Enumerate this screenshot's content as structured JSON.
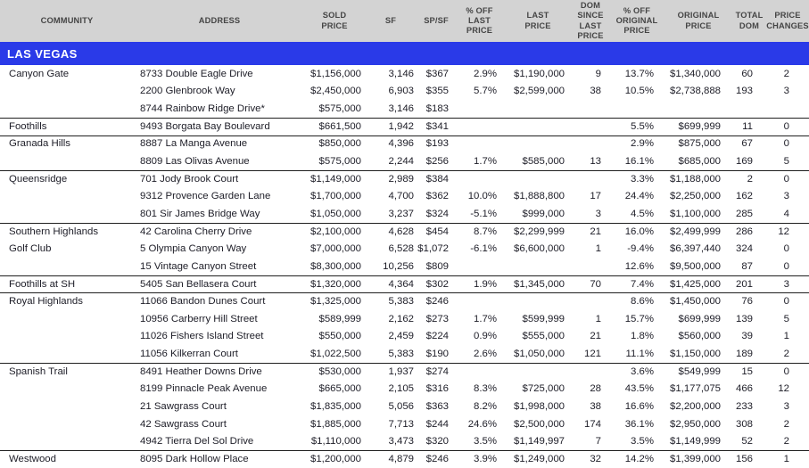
{
  "colors": {
    "banner_bg": "#2a3ae8",
    "banner_text": "#ffffff",
    "header_bg": "#d3d3d3",
    "header_text": "#454545",
    "body_text": "#1d1d27",
    "section_border": "#1f1f1f"
  },
  "table": {
    "region": "LAS VEGAS",
    "columns": [
      {
        "id": "community",
        "label": "COMMUNITY"
      },
      {
        "id": "address",
        "label": "ADDRESS"
      },
      {
        "id": "sold_price",
        "label": "SOLD\nPRICE"
      },
      {
        "id": "sf",
        "label": "SF"
      },
      {
        "id": "sp_sf",
        "label": "SP/SF"
      },
      {
        "id": "pct_off_last",
        "label": "% OFF\nLAST\nPRICE"
      },
      {
        "id": "last_price",
        "label": "LAST\nPRICE"
      },
      {
        "id": "dom_since_last",
        "label": "DOM\nSINCE\nLAST\nPRICE"
      },
      {
        "id": "pct_off_original",
        "label": "% OFF\nORIGINAL\nPRICE"
      },
      {
        "id": "original_price",
        "label": "ORIGINAL\nPRICE"
      },
      {
        "id": "total_dom",
        "label": "TOTAL\nDOM"
      },
      {
        "id": "price_changes",
        "label": "PRICE\nCHANGES"
      }
    ],
    "sections": [
      {
        "community": [
          "Canyon Gate"
        ],
        "rows": [
          {
            "address": "8733 Double Eagle Drive",
            "sold_price": "$1,156,000",
            "sf": "3,146",
            "sp_sf": "$367",
            "pct_off_last": "2.9%",
            "last_price": "$1,190,000",
            "dom_since_last": "9",
            "pct_off_original": "13.7%",
            "original_price": "$1,340,000",
            "total_dom": "60",
            "price_changes": "2"
          },
          {
            "address": "2200 Glenbrook Way",
            "sold_price": "$2,450,000",
            "sf": "6,903",
            "sp_sf": "$355",
            "pct_off_last": "5.7%",
            "last_price": "$2,599,000",
            "dom_since_last": "38",
            "pct_off_original": "10.5%",
            "original_price": "$2,738,888",
            "total_dom": "193",
            "price_changes": "3"
          },
          {
            "address": "8744 Rainbow Ridge Drive*",
            "sold_price": "$575,000",
            "sf": "3,146",
            "sp_sf": "$183",
            "pct_off_last": "",
            "last_price": "",
            "dom_since_last": "",
            "pct_off_original": "",
            "original_price": "",
            "total_dom": "",
            "price_changes": ""
          }
        ]
      },
      {
        "community": [
          "Foothills"
        ],
        "rows": [
          {
            "address": "9493 Borgata Bay Boulevard",
            "sold_price": "$661,500",
            "sf": "1,942",
            "sp_sf": "$341",
            "pct_off_last": "",
            "last_price": "",
            "dom_since_last": "",
            "pct_off_original": "5.5%",
            "original_price": "$699,999",
            "total_dom": "11",
            "price_changes": "0"
          }
        ]
      },
      {
        "community": [
          "Granada Hills"
        ],
        "rows": [
          {
            "address": "8887 La Manga Avenue",
            "sold_price": "$850,000",
            "sf": "4,396",
            "sp_sf": "$193",
            "pct_off_last": "",
            "last_price": "",
            "dom_since_last": "",
            "pct_off_original": "2.9%",
            "original_price": "$875,000",
            "total_dom": "67",
            "price_changes": "0"
          },
          {
            "address": "8809 Las Olivas Avenue",
            "sold_price": "$575,000",
            "sf": "2,244",
            "sp_sf": "$256",
            "pct_off_last": "1.7%",
            "last_price": "$585,000",
            "dom_since_last": "13",
            "pct_off_original": "16.1%",
            "original_price": "$685,000",
            "total_dom": "169",
            "price_changes": "5"
          }
        ]
      },
      {
        "community": [
          "Queensridge"
        ],
        "rows": [
          {
            "address": "701 Jody Brook Court",
            "sold_price": "$1,149,000",
            "sf": "2,989",
            "sp_sf": "$384",
            "pct_off_last": "",
            "last_price": "",
            "dom_since_last": "",
            "pct_off_original": "3.3%",
            "original_price": "$1,188,000",
            "total_dom": "2",
            "price_changes": "0"
          },
          {
            "address": "9312 Provence Garden Lane",
            "sold_price": "$1,700,000",
            "sf": "4,700",
            "sp_sf": "$362",
            "pct_off_last": "10.0%",
            "last_price": "$1,888,800",
            "dom_since_last": "17",
            "pct_off_original": "24.4%",
            "original_price": "$2,250,000",
            "total_dom": "162",
            "price_changes": "3"
          },
          {
            "address": "801 Sir James Bridge Way",
            "sold_price": "$1,050,000",
            "sf": "3,237",
            "sp_sf": "$324",
            "pct_off_last": "-5.1%",
            "last_price": "$999,000",
            "dom_since_last": "3",
            "pct_off_original": "4.5%",
            "original_price": "$1,100,000",
            "total_dom": "285",
            "price_changes": "4"
          }
        ]
      },
      {
        "community": [
          "Southern Highlands",
          "Golf Club"
        ],
        "rows": [
          {
            "address": "42 Carolina Cherry Drive",
            "sold_price": "$2,100,000",
            "sf": "4,628",
            "sp_sf": "$454",
            "pct_off_last": "8.7%",
            "last_price": "$2,299,999",
            "dom_since_last": "21",
            "pct_off_original": "16.0%",
            "original_price": "$2,499,999",
            "total_dom": "286",
            "price_changes": "12"
          },
          {
            "address": "5 Olympia Canyon Way",
            "sold_price": "$7,000,000",
            "sf": "6,528",
            "sp_sf": "$1,072",
            "pct_off_last": "-6.1%",
            "last_price": "$6,600,000",
            "dom_since_last": "1",
            "pct_off_original": "-9.4%",
            "original_price": "$6,397,440",
            "total_dom": "324",
            "price_changes": "0"
          },
          {
            "address": "15 Vintage Canyon Street",
            "sold_price": "$8,300,000",
            "sf": "10,256",
            "sp_sf": "$809",
            "pct_off_last": "",
            "last_price": "",
            "dom_since_last": "",
            "pct_off_original": "12.6%",
            "original_price": "$9,500,000",
            "total_dom": "87",
            "price_changes": "0"
          }
        ]
      },
      {
        "community": [
          "Foothills at SH"
        ],
        "rows": [
          {
            "address": "5405 San Bellasera Court",
            "sold_price": "$1,320,000",
            "sf": "4,364",
            "sp_sf": "$302",
            "pct_off_last": "1.9%",
            "last_price": "$1,345,000",
            "dom_since_last": "70",
            "pct_off_original": "7.4%",
            "original_price": "$1,425,000",
            "total_dom": "201",
            "price_changes": "3"
          }
        ]
      },
      {
        "community": [
          "Royal Highlands"
        ],
        "rows": [
          {
            "address": "11066 Bandon Dunes Court",
            "sold_price": "$1,325,000",
            "sf": "5,383",
            "sp_sf": "$246",
            "pct_off_last": "",
            "last_price": "",
            "dom_since_last": "",
            "pct_off_original": "8.6%",
            "original_price": "$1,450,000",
            "total_dom": "76",
            "price_changes": "0"
          },
          {
            "address": "10956 Carberry Hill Street",
            "sold_price": "$589,999",
            "sf": "2,162",
            "sp_sf": "$273",
            "pct_off_last": "1.7%",
            "last_price": "$599,999",
            "dom_since_last": "1",
            "pct_off_original": "15.7%",
            "original_price": "$699,999",
            "total_dom": "139",
            "price_changes": "5"
          },
          {
            "address": "11026 Fishers Island Street",
            "sold_price": "$550,000",
            "sf": "2,459",
            "sp_sf": "$224",
            "pct_off_last": "0.9%",
            "last_price": "$555,000",
            "dom_since_last": "21",
            "pct_off_original": "1.8%",
            "original_price": "$560,000",
            "total_dom": "39",
            "price_changes": "1"
          },
          {
            "address": "11056 Kilkerran Court",
            "sold_price": "$1,022,500",
            "sf": "5,383",
            "sp_sf": "$190",
            "pct_off_last": "2.6%",
            "last_price": "$1,050,000",
            "dom_since_last": "121",
            "pct_off_original": "11.1%",
            "original_price": "$1,150,000",
            "total_dom": "189",
            "price_changes": "2"
          }
        ]
      },
      {
        "community": [
          "Spanish Trail"
        ],
        "rows": [
          {
            "address": "8491 Heather Downs Drive",
            "sold_price": "$530,000",
            "sf": "1,937",
            "sp_sf": "$274",
            "pct_off_last": "",
            "last_price": "",
            "dom_since_last": "",
            "pct_off_original": "3.6%",
            "original_price": "$549,999",
            "total_dom": "15",
            "price_changes": "0"
          },
          {
            "address": "8199 Pinnacle Peak Avenue",
            "sold_price": "$665,000",
            "sf": "2,105",
            "sp_sf": "$316",
            "pct_off_last": "8.3%",
            "last_price": "$725,000",
            "dom_since_last": "28",
            "pct_off_original": "43.5%",
            "original_price": "$1,177,075",
            "total_dom": "466",
            "price_changes": "12"
          },
          {
            "address": "21 Sawgrass Court",
            "sold_price": "$1,835,000",
            "sf": "5,056",
            "sp_sf": "$363",
            "pct_off_last": "8.2%",
            "last_price": "$1,998,000",
            "dom_since_last": "38",
            "pct_off_original": "16.6%",
            "original_price": "$2,200,000",
            "total_dom": "233",
            "price_changes": "3"
          },
          {
            "address": "42 Sawgrass Court",
            "sold_price": "$1,885,000",
            "sf": "7,713",
            "sp_sf": "$244",
            "pct_off_last": "24.6%",
            "last_price": "$2,500,000",
            "dom_since_last": "174",
            "pct_off_original": "36.1%",
            "original_price": "$2,950,000",
            "total_dom": "308",
            "price_changes": "2"
          },
          {
            "address": "4942 Tierra Del Sol Drive",
            "sold_price": "$1,110,000",
            "sf": "3,473",
            "sp_sf": "$320",
            "pct_off_last": "3.5%",
            "last_price": "$1,149,997",
            "dom_since_last": "7",
            "pct_off_original": "3.5%",
            "original_price": "$1,149,999",
            "total_dom": "52",
            "price_changes": "2"
          }
        ]
      },
      {
        "community": [
          "Westwood"
        ],
        "rows": [
          {
            "address": "8095 Dark Hollow Place",
            "sold_price": "$1,200,000",
            "sf": "4,879",
            "sp_sf": "$246",
            "pct_off_last": "3.9%",
            "last_price": "$1,249,000",
            "dom_since_last": "32",
            "pct_off_original": "14.2%",
            "original_price": "$1,399,000",
            "total_dom": "156",
            "price_changes": "1"
          }
        ]
      }
    ]
  }
}
